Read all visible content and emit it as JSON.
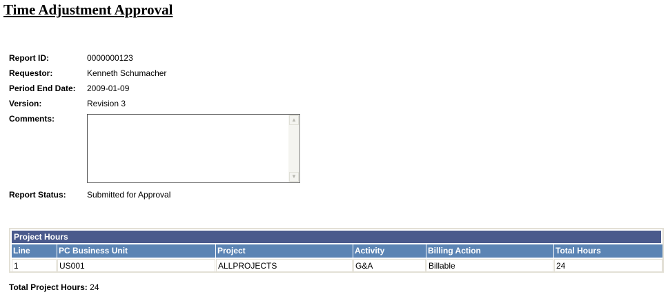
{
  "page_title": "Time Adjustment Approval",
  "fields": {
    "report_id": {
      "label": "Report ID:",
      "value": "0000000123"
    },
    "requestor": {
      "label": "Requestor:",
      "value": "Kenneth Schumacher"
    },
    "period_end": {
      "label": "Period End Date:",
      "value": "2009-01-09"
    },
    "version": {
      "label": "Version:",
      "value": "Revision 3"
    },
    "comments": {
      "label": "Comments:",
      "value": ""
    },
    "status": {
      "label": "Report Status:",
      "value": "Submitted for Approval"
    }
  },
  "grid": {
    "title": "Project Hours",
    "columns": [
      "Line",
      "PC Business Unit",
      "Project",
      "Activity",
      "Billing Action",
      "Total Hours"
    ],
    "rows": [
      [
        "1",
        "US001",
        "ALLPROJECTS",
        "G&A",
        "Billable",
        "24"
      ]
    ]
  },
  "total": {
    "label": "Total Project Hours:",
    "value": "24"
  },
  "colors": {
    "grid_title_bg": "#4a5a8c",
    "grid_header_bg": "#5b84b4"
  }
}
